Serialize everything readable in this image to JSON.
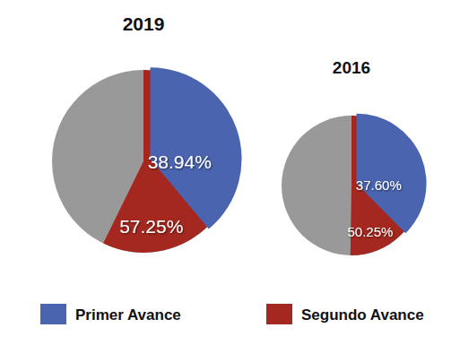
{
  "chart_data": [
    {
      "type": "pie",
      "title": "2019",
      "categories": [
        "Primer Avance",
        "Segundo Avance"
      ],
      "values": [
        38.94,
        57.25
      ],
      "value_labels": [
        "38.94%",
        "57.25%"
      ],
      "colors": [
        "#4a64b0",
        "#a4281f"
      ],
      "data_labels": true,
      "legend": "bottom"
    },
    {
      "type": "pie",
      "title": "2016",
      "categories": [
        "Primer Avance",
        "Segundo Avance"
      ],
      "values": [
        37.6,
        50.25
      ],
      "value_labels": [
        "37.60%",
        "50.25%"
      ],
      "colors": [
        "#4a64b0",
        "#a4281f"
      ],
      "data_labels": true,
      "legend": "bottom"
    }
  ]
}
